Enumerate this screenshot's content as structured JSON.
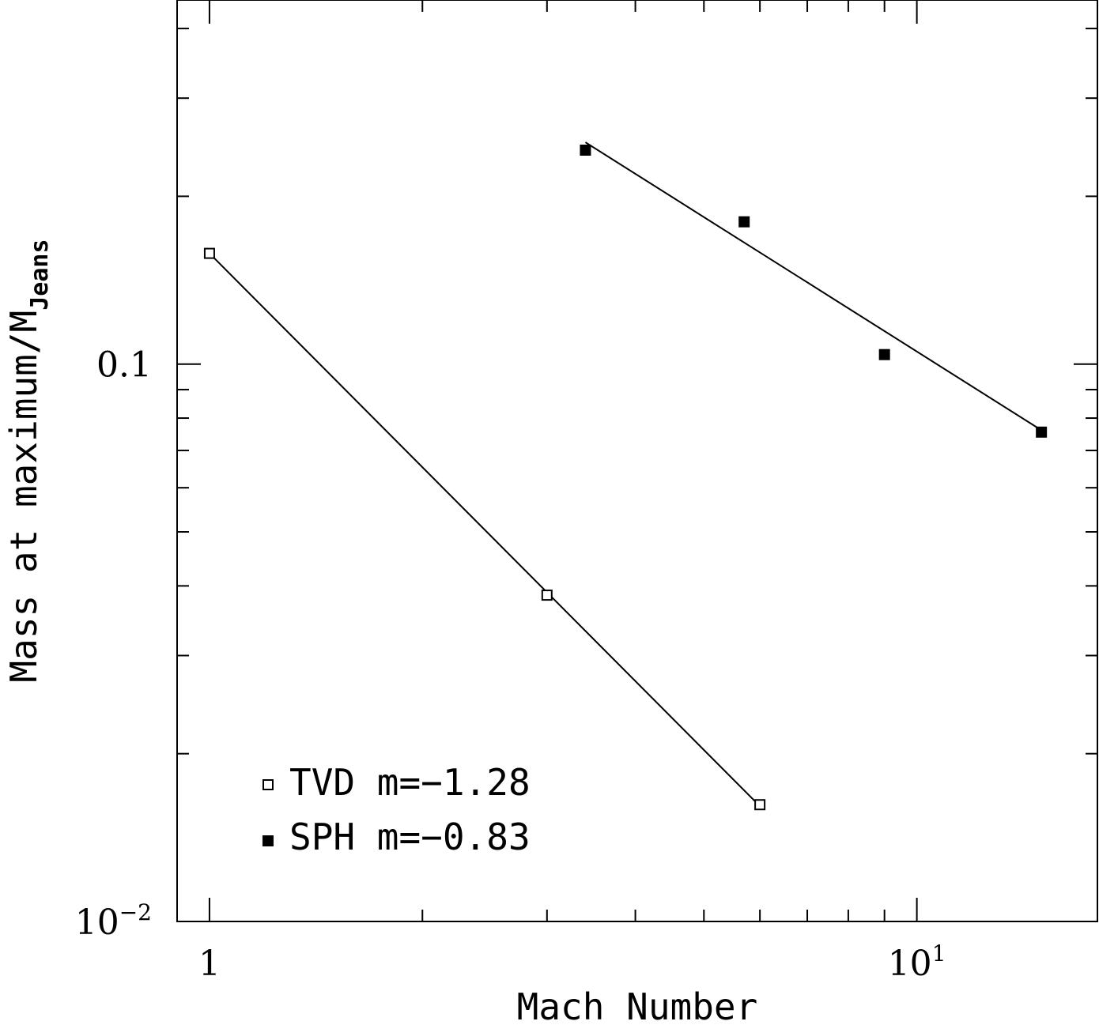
{
  "chart_data": {
    "type": "scatter",
    "xscale": "log",
    "yscale": "log",
    "xlim": [
      0.9,
      18
    ],
    "ylim": [
      0.01,
      0.45
    ],
    "xlabel": "Mach Number",
    "ylabel": {
      "main": "Mass at maximum/M",
      "subscript": "Jeans"
    },
    "x_tick_labels": [
      {
        "x": 1,
        "text": "1",
        "exp": ""
      },
      {
        "x": 10,
        "text": "10",
        "exp": "1"
      }
    ],
    "y_tick_labels": [
      {
        "y": 0.1,
        "text": "0.1",
        "exp": ""
      },
      {
        "y": 0.01,
        "text": "10",
        "exp": "−2"
      }
    ],
    "series": [
      {
        "name": "TVD",
        "legend_label": "TVD m=−1.28",
        "marker": "open-square",
        "x": [
          1.0,
          3.0,
          6.0
        ],
        "y": [
          0.158,
          0.0385,
          0.0162
        ],
        "fit": {
          "slope": -1.28,
          "x": [
            1.0,
            6.0
          ],
          "y": [
            0.158,
            0.0161
          ]
        }
      },
      {
        "name": "SPH",
        "legend_label": "SPH m=−0.83",
        "marker": "filled-square",
        "x": [
          3.4,
          5.7,
          9.0,
          15.0
        ],
        "y": [
          0.242,
          0.18,
          0.104,
          0.0755
        ],
        "fit": {
          "slope": -0.83,
          "x": [
            3.4,
            15.0
          ],
          "y": [
            0.25,
            0.0761
          ]
        }
      }
    ],
    "legend_position": "bottom-left",
    "grid": false
  },
  "colors": {
    "foreground": "#000000",
    "background": "#ffffff"
  }
}
